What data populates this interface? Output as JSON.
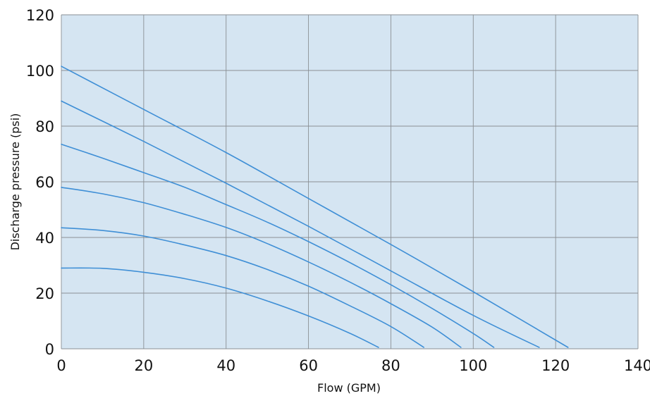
{
  "chart_data": {
    "type": "line",
    "title": "",
    "xlabel": "Flow (GPM)",
    "ylabel": "Discharge pressure (psi)",
    "xlim": [
      0,
      140
    ],
    "ylim": [
      0,
      120
    ],
    "x_ticks": [
      0,
      20,
      40,
      60,
      80,
      100,
      120,
      140
    ],
    "y_ticks": [
      0,
      20,
      40,
      60,
      80,
      100,
      120
    ],
    "grid": true,
    "colors": {
      "plot_background": "#d5e5f2",
      "line": "#3f8fd6",
      "grid": "#8a8f94"
    },
    "series": [
      {
        "x": [
          0,
          10,
          20,
          30,
          40,
          50,
          60,
          70,
          77
        ],
        "y": [
          29,
          28.9,
          27.5,
          25.2,
          21.8,
          17.2,
          11.8,
          5.6,
          0.5
        ]
      },
      {
        "x": [
          0,
          10,
          20,
          30,
          40,
          50,
          60,
          70,
          80,
          88
        ],
        "y": [
          43.5,
          42.5,
          40.5,
          37.3,
          33.5,
          28.5,
          22.5,
          15.5,
          8,
          0.5
        ]
      },
      {
        "x": [
          0,
          10,
          20,
          30,
          40,
          50,
          60,
          70,
          80,
          90,
          97
        ],
        "y": [
          58,
          55.7,
          52.5,
          48.3,
          43.6,
          37.8,
          31.2,
          24,
          16.2,
          7.8,
          0.5
        ]
      },
      {
        "x": [
          0,
          10,
          20,
          30,
          40,
          50,
          60,
          70,
          80,
          90,
          100,
          105
        ],
        "y": [
          73.5,
          68.5,
          63.3,
          58,
          51.8,
          45.5,
          38.5,
          31,
          23,
          14.5,
          5.5,
          0.5
        ]
      },
      {
        "x": [
          0,
          20,
          40,
          60,
          80,
          100,
          116
        ],
        "y": [
          89,
          74.5,
          59.5,
          44,
          28,
          12,
          0.5
        ]
      },
      {
        "x": [
          0,
          20,
          40,
          60,
          80,
          100,
          123
        ],
        "y": [
          101.5,
          86,
          70.5,
          54,
          37.5,
          20.5,
          0.5
        ]
      }
    ]
  }
}
